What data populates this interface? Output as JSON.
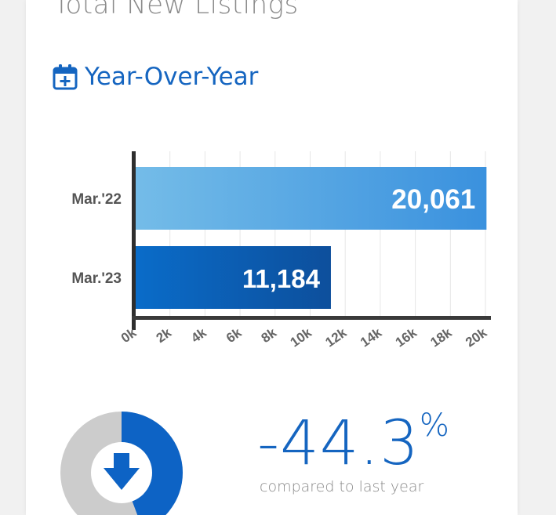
{
  "page": {
    "title": "Total New Listings"
  },
  "section": {
    "title": "Year-Over-Year",
    "icon": "calendar-plus-icon"
  },
  "chart_data": {
    "type": "bar",
    "orientation": "horizontal",
    "categories": [
      "Mar.'22",
      "Mar.'23"
    ],
    "values": [
      20061,
      11184
    ],
    "value_labels": [
      "20,061",
      "11,184"
    ],
    "xlim": [
      0,
      20000
    ],
    "x_ticks": [
      0,
      2000,
      4000,
      6000,
      8000,
      10000,
      12000,
      14000,
      16000,
      18000,
      20000
    ],
    "x_tick_labels": [
      "0k",
      "2k",
      "4k",
      "6k",
      "8k",
      "10k",
      "12k",
      "14k",
      "16k",
      "18k",
      "20k"
    ],
    "grid": true,
    "colors": [
      "#5cb3ea",
      "#0d5fb3"
    ]
  },
  "summary": {
    "change_value": "-44.3",
    "change_unit": "%",
    "caption": "compared to last year",
    "direction_icon": "arrow-down-icon",
    "gauge_fraction": 0.443,
    "colors": {
      "accent": "#1565c0",
      "gauge_bg": "#cccccc",
      "gauge_fill": "#0d63c5"
    }
  }
}
